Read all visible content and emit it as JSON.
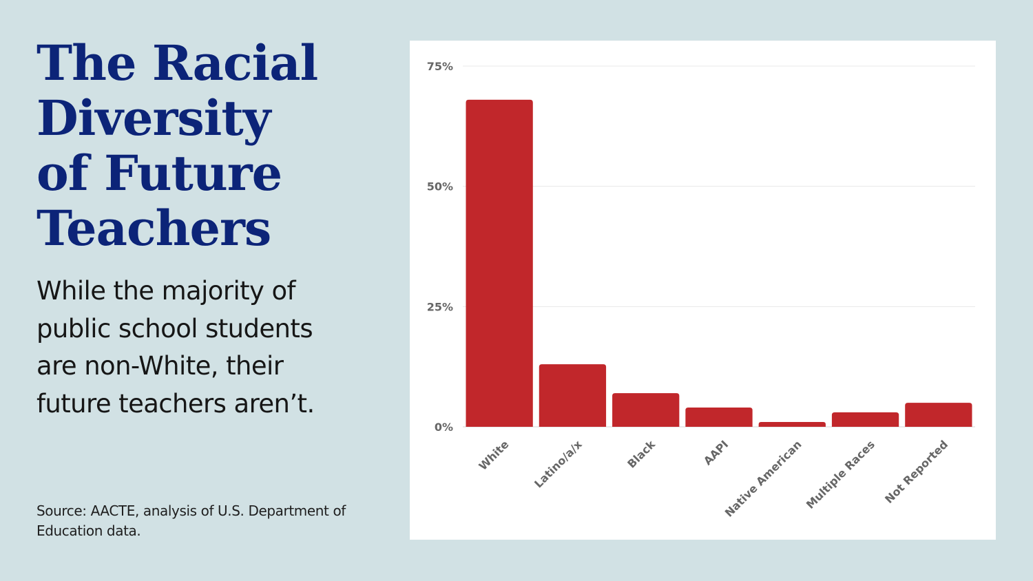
{
  "title_lines": [
    "The Racial",
    "Diversity",
    "of Future",
    "Teachers"
  ],
  "subtitle": "While the majority of public school students are non-White, their future teachers aren’t.",
  "source": "Source: AACTE, analysis of U.S. Department of Education data.",
  "colors": {
    "background": "#d1e1e4",
    "title": "#0c2478",
    "bar": "#c1272b",
    "gridline": "#e8e8e8",
    "axis_text": "#666666"
  },
  "chart_data": {
    "type": "bar",
    "title": "",
    "xlabel": "",
    "ylabel": "",
    "categories": [
      "White",
      "Latino/a/x",
      "Black",
      "AAPI",
      "Native American",
      "Multiple Races",
      "Not Reported"
    ],
    "values": [
      68,
      13,
      7,
      4,
      1,
      3,
      5
    ],
    "unit": "%",
    "ylim": [
      0,
      75
    ],
    "yticks": [
      0,
      25,
      50,
      75
    ],
    "ytick_labels": [
      "0%",
      "25%",
      "50%",
      "75%"
    ],
    "grid": true,
    "legend": "none"
  }
}
